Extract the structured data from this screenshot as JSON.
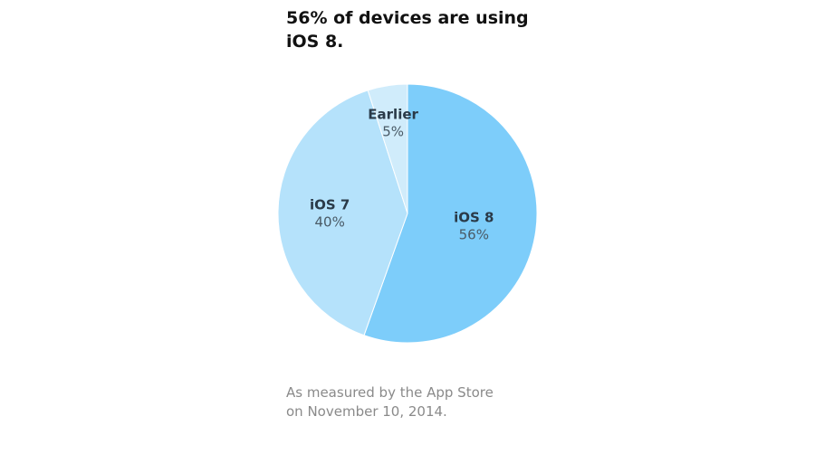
{
  "chart_data": {
    "type": "pie",
    "title_lines": [
      "56% of devices are using",
      "iOS 8."
    ],
    "slices": [
      {
        "label": "iOS 8",
        "value": 56,
        "value_label": "56%",
        "color": "#7dcdfa"
      },
      {
        "label": "iOS 7",
        "value": 40,
        "value_label": "40%",
        "color": "#b5e2fb"
      },
      {
        "label": "Earlier",
        "value": 5,
        "value_label": "5%",
        "color": "#d0ecfb"
      }
    ],
    "footnote_lines": [
      "As measured by the App Store",
      "on November 10, 2014."
    ]
  }
}
